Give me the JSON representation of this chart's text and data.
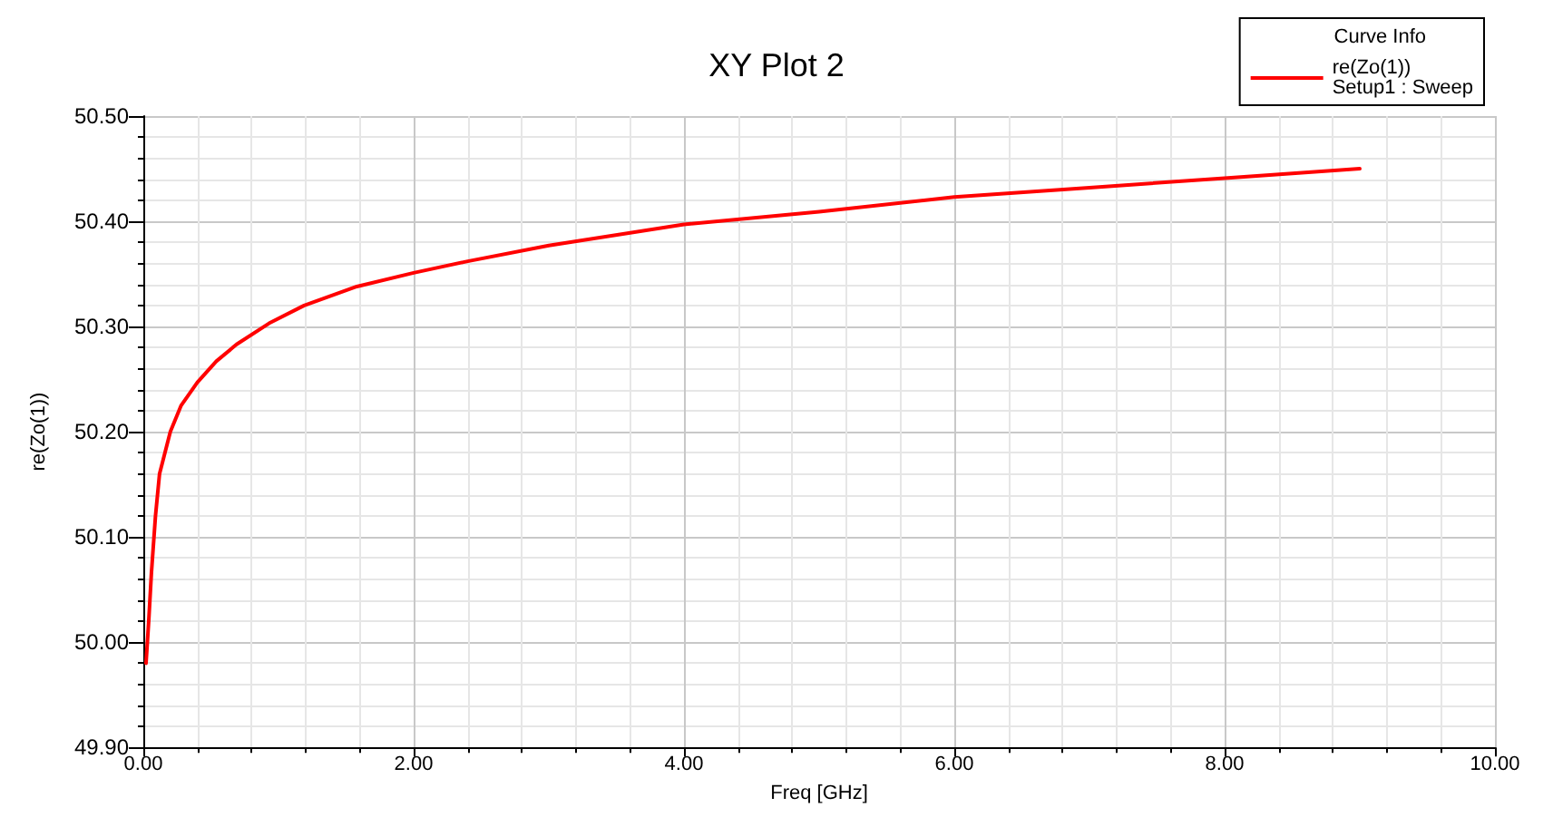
{
  "chart_data": {
    "type": "line",
    "title": "XY Plot 2",
    "xlabel": "Freq [GHz]",
    "ylabel": "re(Zo(1))",
    "legend_title": "Curve Info",
    "x": [
      0.02,
      0.04,
      0.06,
      0.09,
      0.12,
      0.2,
      0.28,
      0.4,
      0.54,
      0.69,
      0.93,
      1.19,
      1.58,
      2.0,
      2.4,
      3.0,
      4.0,
      5.0,
      6.0,
      7.0,
      8.0,
      9.0
    ],
    "series": [
      {
        "name": "re(Zo(1))\nSetup1 : Sweep",
        "color": "#ff0000",
        "values": [
          49.98,
          50.02,
          50.066,
          50.12,
          50.16,
          50.2,
          50.225,
          50.247,
          50.267,
          50.283,
          50.303,
          50.32,
          50.338,
          50.351,
          50.362,
          50.377,
          50.397,
          50.409,
          50.423,
          50.432,
          50.441,
          50.45
        ]
      }
    ],
    "xlim": [
      0,
      10
    ],
    "xticks": [
      {
        "value": 0,
        "label": "0.00"
      },
      {
        "value": 2,
        "label": "2.00"
      },
      {
        "value": 4,
        "label": "4.00"
      },
      {
        "value": 6,
        "label": "6.00"
      },
      {
        "value": 8,
        "label": "8.00"
      },
      {
        "value": 10,
        "label": "10.00"
      }
    ],
    "ylim": [
      49.9,
      50.5
    ],
    "yticks": [
      {
        "value": 49.9,
        "label": "49.90"
      },
      {
        "value": 50.0,
        "label": "50.00"
      },
      {
        "value": 50.1,
        "label": "50.10"
      },
      {
        "value": 50.2,
        "label": "50.20"
      },
      {
        "value": 50.3,
        "label": "50.30"
      },
      {
        "value": 50.4,
        "label": "50.40"
      },
      {
        "value": 50.5,
        "label": "50.50"
      }
    ],
    "grid": true,
    "legend": "top right",
    "marker": "none",
    "line_style": "solid"
  }
}
